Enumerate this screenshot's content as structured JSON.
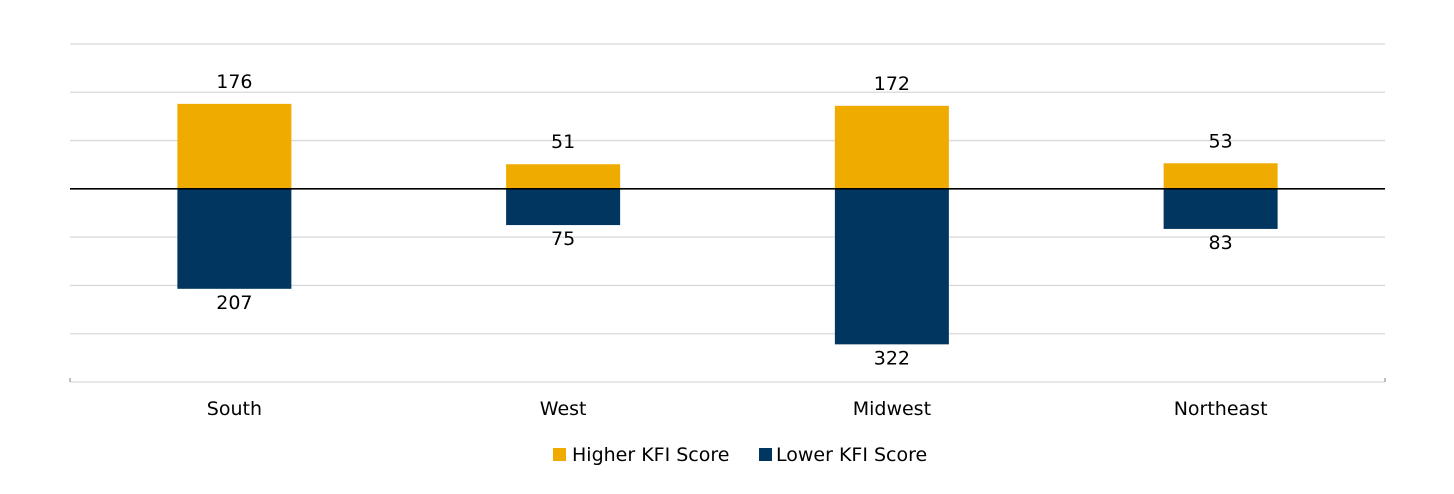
{
  "chart_data": {
    "type": "bar",
    "categories": [
      "South",
      "West",
      "Midwest",
      "Northeast"
    ],
    "series": [
      {
        "name": "Higher KFI Score",
        "values": [
          176,
          51,
          172,
          53
        ],
        "color": "#f0ab00"
      },
      {
        "name": "Lower KFI Score",
        "values": [
          -207,
          -75,
          -322,
          -83
        ],
        "color": "#00365f"
      }
    ],
    "data_labels": {
      "higher": [
        "176",
        "51",
        "172",
        "53"
      ],
      "lower": [
        "207",
        "75",
        "322",
        "83"
      ]
    },
    "ylim": [
      -400,
      300
    ],
    "grid": true,
    "legend": "bottom",
    "title": "",
    "xlabel": "",
    "ylabel": ""
  }
}
